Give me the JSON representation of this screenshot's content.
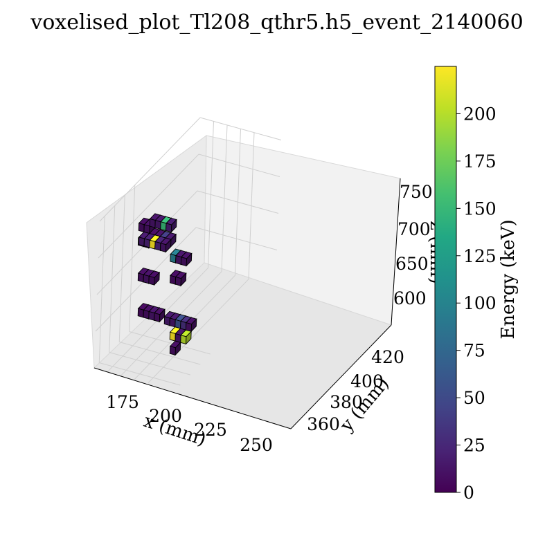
{
  "chart_data": {
    "type": "voxel3d",
    "title": "voxelised_plot_Tl208_qthr5.h5_event_2140060",
    "xlabel": "x (mm)",
    "ylabel": "y (mm)",
    "zlabel": "z (mm)",
    "xticks": [
      "175",
      "200",
      "225",
      "250"
    ],
    "yticks": [
      "360",
      "380",
      "400",
      "420"
    ],
    "zticks": [
      "600",
      "650",
      "700",
      "750"
    ],
    "colorbar": {
      "label": "Energy (keV)",
      "range": [
        0,
        225
      ],
      "ticks": [
        "0",
        "25",
        "50",
        "75",
        "100",
        "125",
        "150",
        "175",
        "200"
      ],
      "colormap": "viridis"
    },
    "grid": true,
    "voxel_size_mm": 10,
    "voxels": [
      {
        "x": 160,
        "y": 420,
        "z": 690,
        "e": 8
      },
      {
        "x": 160,
        "y": 420,
        "z": 670,
        "e": 6
      },
      {
        "x": 170,
        "y": 420,
        "z": 690,
        "e": 10
      },
      {
        "x": 170,
        "y": 420,
        "z": 670,
        "e": 7
      },
      {
        "x": 180,
        "y": 420,
        "z": 700,
        "e": 12
      },
      {
        "x": 180,
        "y": 420,
        "z": 680,
        "e": 9
      },
      {
        "x": 190,
        "y": 420,
        "z": 700,
        "e": 14
      },
      {
        "x": 190,
        "y": 420,
        "z": 680,
        "e": 11
      },
      {
        "x": 200,
        "y": 420,
        "z": 700,
        "e": 150
      },
      {
        "x": 200,
        "y": 420,
        "z": 680,
        "e": 40
      },
      {
        "x": 210,
        "y": 420,
        "z": 700,
        "e": 18
      },
      {
        "x": 210,
        "y": 420,
        "z": 680,
        "e": 15
      },
      {
        "x": 170,
        "y": 410,
        "z": 680,
        "e": 16
      },
      {
        "x": 180,
        "y": 410,
        "z": 680,
        "e": 20
      },
      {
        "x": 190,
        "y": 410,
        "z": 680,
        "e": 225
      },
      {
        "x": 200,
        "y": 410,
        "z": 680,
        "e": 22
      },
      {
        "x": 210,
        "y": 410,
        "z": 680,
        "e": 12
      },
      {
        "x": 180,
        "y": 400,
        "z": 640,
        "e": 9
      },
      {
        "x": 190,
        "y": 400,
        "z": 640,
        "e": 11
      },
      {
        "x": 200,
        "y": 400,
        "z": 640,
        "e": 8
      },
      {
        "x": 220,
        "y": 420,
        "z": 660,
        "e": 95
      },
      {
        "x": 230,
        "y": 420,
        "z": 660,
        "e": 13
      },
      {
        "x": 240,
        "y": 420,
        "z": 660,
        "e": 10
      },
      {
        "x": 230,
        "y": 410,
        "z": 640,
        "e": 7
      },
      {
        "x": 240,
        "y": 410,
        "z": 640,
        "e": 9
      },
      {
        "x": 200,
        "y": 380,
        "z": 610,
        "e": 6
      },
      {
        "x": 210,
        "y": 380,
        "z": 610,
        "e": 8
      },
      {
        "x": 220,
        "y": 380,
        "z": 610,
        "e": 12
      },
      {
        "x": 230,
        "y": 380,
        "z": 610,
        "e": 9
      },
      {
        "x": 240,
        "y": 390,
        "z": 600,
        "e": 16
      },
      {
        "x": 250,
        "y": 390,
        "z": 600,
        "e": 14
      },
      {
        "x": 260,
        "y": 390,
        "z": 600,
        "e": 55
      },
      {
        "x": 270,
        "y": 390,
        "z": 600,
        "e": 30
      },
      {
        "x": 280,
        "y": 390,
        "z": 600,
        "e": 10
      },
      {
        "x": 260,
        "y": 380,
        "z": 590,
        "e": 225
      },
      {
        "x": 270,
        "y": 380,
        "z": 590,
        "e": 12
      },
      {
        "x": 280,
        "y": 380,
        "z": 590,
        "e": 200
      },
      {
        "x": 270,
        "y": 370,
        "z": 580,
        "e": 9
      }
    ]
  }
}
